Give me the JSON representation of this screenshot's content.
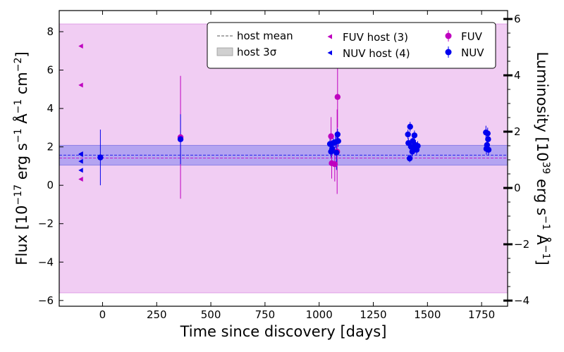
{
  "chart_data": {
    "type": "scatter",
    "xlabel": "Time since discovery [days]",
    "ylabel_left": "Flux [10$^{-17}$ erg s$^{-1}$ Å$^{-1}$ cm$^{-2}$]",
    "ylabel_right": "Luminosity [10$^{39}$ erg s$^{-1}$ Å$^{-1}$]",
    "xlim": [
      -200,
      1870
    ],
    "ylim": [
      -6.3,
      9.1
    ],
    "ylim_right": [
      -4.2,
      6.3
    ],
    "xticks": [
      0,
      250,
      500,
      750,
      1000,
      1250,
      1500,
      1750
    ],
    "yticks": [
      -6,
      -4,
      -2,
      0,
      2,
      4,
      6,
      8
    ],
    "yticks_right": [
      -4,
      -2,
      0,
      2,
      4,
      6
    ],
    "colors": {
      "fuv": "#bf00bf",
      "nuv": "#0000ee",
      "fuv_band": "#f0c8f2",
      "nuv_band": "#a99cf0",
      "host_mean": "#777777"
    },
    "host": {
      "fuv_mean": 1.42,
      "fuv_3sigma": [
        -5.6,
        8.4
      ],
      "nuv_mean": 1.57,
      "nuv_3sigma": [
        1.05,
        2.08
      ],
      "fuv_points": [
        {
          "x": -100,
          "y": 7.25
        },
        {
          "x": -100,
          "y": 5.22
        },
        {
          "x": -100,
          "y": 0.32
        }
      ],
      "nuv_points": [
        {
          "x": -100,
          "y": 1.64
        },
        {
          "x": -100,
          "y": 1.25
        },
        {
          "x": -100,
          "y": 0.78
        },
        {
          "x": -100,
          "y": 1.6
        }
      ]
    },
    "series": [
      {
        "name": "FUV",
        "points": [
          {
            "x": 360,
            "y": 2.5,
            "err": 3.2
          },
          {
            "x": 1055,
            "y": 2.55,
            "err": 1.0
          },
          {
            "x": 1058,
            "y": 1.15,
            "err": 0.8
          },
          {
            "x": 1072,
            "y": 1.1,
            "err": 0.9
          },
          {
            "x": 1083,
            "y": 1.75,
            "err": 2.2
          },
          {
            "x": 1085,
            "y": 4.6,
            "err": 1.6
          }
        ]
      },
      {
        "name": "NUV",
        "points": [
          {
            "x": -10,
            "y": 1.45,
            "err": 1.45
          },
          {
            "x": 360,
            "y": 2.4,
            "err": 1.3
          },
          {
            "x": 1050,
            "y": 2.15,
            "err": 0.3
          },
          {
            "x": 1055,
            "y": 1.75,
            "err": 0.3
          },
          {
            "x": 1060,
            "y": 1.9,
            "err": 0.3
          },
          {
            "x": 1065,
            "y": 2.2,
            "err": 0.3
          },
          {
            "x": 1075,
            "y": 2.25,
            "err": 0.3
          },
          {
            "x": 1080,
            "y": 1.7,
            "err": 0.9
          },
          {
            "x": 1085,
            "y": 2.65,
            "err": 0.3
          },
          {
            "x": 1088,
            "y": 2.3,
            "err": 0.3
          },
          {
            "x": 1410,
            "y": 2.65,
            "err": 0.25
          },
          {
            "x": 1412,
            "y": 2.2,
            "err": 0.25
          },
          {
            "x": 1418,
            "y": 1.4,
            "err": 0.2
          },
          {
            "x": 1420,
            "y": 3.05,
            "err": 0.25
          },
          {
            "x": 1425,
            "y": 2.0,
            "err": 0.25
          },
          {
            "x": 1430,
            "y": 1.75,
            "err": 0.25
          },
          {
            "x": 1432,
            "y": 2.3,
            "err": 0.25
          },
          {
            "x": 1438,
            "y": 1.95,
            "err": 0.25
          },
          {
            "x": 1440,
            "y": 2.6,
            "err": 0.25
          },
          {
            "x": 1445,
            "y": 2.1,
            "err": 0.25
          },
          {
            "x": 1450,
            "y": 1.85,
            "err": 0.25
          },
          {
            "x": 1455,
            "y": 2.05,
            "err": 0.25
          },
          {
            "x": 1770,
            "y": 2.75,
            "err": 0.35
          },
          {
            "x": 1772,
            "y": 1.9,
            "err": 0.3
          },
          {
            "x": 1775,
            "y": 2.1,
            "err": 0.3
          },
          {
            "x": 1778,
            "y": 2.7,
            "err": 0.3
          },
          {
            "x": 1780,
            "y": 2.4,
            "err": 0.3
          },
          {
            "x": 1782,
            "y": 1.85,
            "err": 0.3
          }
        ]
      }
    ],
    "legend": {
      "position": "top-right",
      "host_mean": "host mean",
      "host_3sigma": "host 3σ",
      "fuv_host": "FUV host (3)",
      "nuv_host": "NUV host (4)",
      "fuv": "FUV",
      "nuv": "NUV"
    }
  }
}
